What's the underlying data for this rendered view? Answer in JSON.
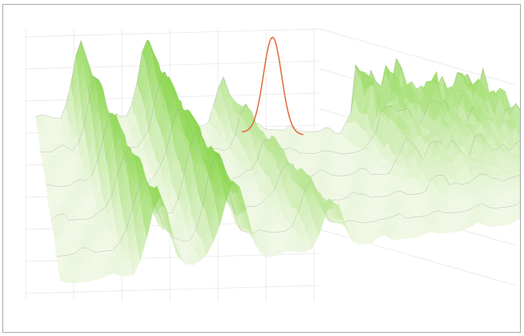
{
  "chart_data": {
    "type": "surface",
    "title": "",
    "xlabel": "",
    "ylabel": "",
    "zlabel": "",
    "grid": true,
    "legend": "none",
    "surface": {
      "rows": 30,
      "cols": 90,
      "base_level": 0.0,
      "noise_amplitude": 0.06,
      "ridges": [
        {
          "row_from": 0,
          "row_to": 29,
          "col_center_at_row_from": 9,
          "col_center_at_row_to": 15,
          "height": 0.9,
          "width_cols": 2.4
        },
        {
          "row_from": 0,
          "row_to": 29,
          "col_center_at_row_from": 22,
          "col_center_at_row_to": 26,
          "height": 1.0,
          "width_cols": 2.6
        },
        {
          "row_from": 0,
          "row_to": 29,
          "col_center_at_row_from": 37,
          "col_center_at_row_to": 41,
          "height": 0.55,
          "width_cols": 2.2
        }
      ],
      "plateau": {
        "col_from": 60,
        "col_to": 89,
        "row_from": 0,
        "row_to": 21,
        "height": 0.7,
        "jitter": 0.2
      }
    },
    "highlight_line": {
      "row": 0,
      "color": "#e0693d",
      "peak_col": 46,
      "peak_height": 1.2,
      "width_cols": 2.5
    },
    "colors": {
      "surface_light": "#eef7e1",
      "surface_dark": "#7ed23c",
      "contour": "#999999",
      "grid": "#e5e5e5",
      "frame_border": "#a9a9a9"
    }
  }
}
